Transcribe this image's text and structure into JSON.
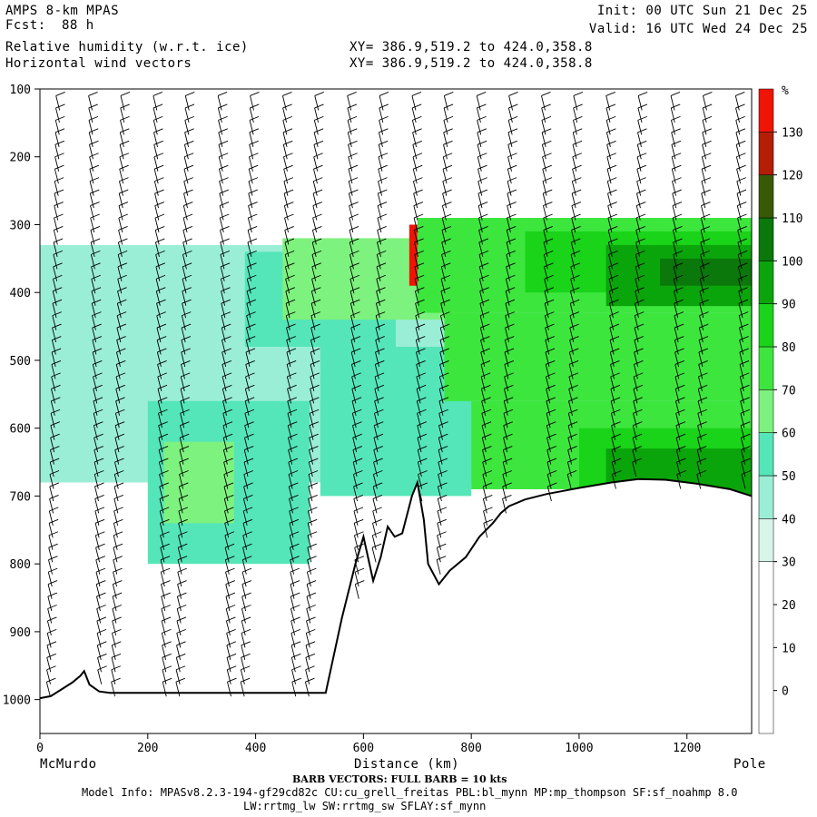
{
  "header": {
    "model": "AMPS 8-km MPAS",
    "fcst_label": "Fcst:",
    "fcst_value": "88 h",
    "field1": "Relative humidity (w.r.t. ice)",
    "field2": "Horizontal wind vectors",
    "init": "Init: 00 UTC Sun 21 Dec 25",
    "valid": "Valid: 16 UTC Wed 24 Dec 25",
    "xy1": "XY= 386.9,519.2 to 424.0,358.8",
    "xy2": "XY= 386.9,519.2 to 424.0,358.8"
  },
  "chart_data": {
    "type": "heatmap",
    "title": "Relative humidity (w.r.t. ice) / Horizontal wind vectors",
    "xlabel": "Distance (km)",
    "ylabel": "",
    "xlim": [
      0,
      1320
    ],
    "ylim": [
      1050,
      100
    ],
    "x_ticks": [
      0,
      200,
      400,
      600,
      800,
      1000,
      1200
    ],
    "y_ticks": [
      100,
      200,
      300,
      400,
      500,
      600,
      700,
      800,
      900,
      1000
    ],
    "x_endpoint_labels": [
      "McMurdo",
      "Pole"
    ],
    "colorbar": {
      "unit": "%",
      "tick_labels": [
        "0",
        "10",
        "20",
        "30",
        "40",
        "50",
        "60",
        "70",
        "80",
        "90",
        "100",
        "110",
        "120",
        "130"
      ],
      "bands": [
        {
          "from": -10,
          "to": 30,
          "color": "#ffffff"
        },
        {
          "from": 30,
          "to": 40,
          "color": "#d8f5ea"
        },
        {
          "from": 40,
          "to": 50,
          "color": "#9beed6"
        },
        {
          "from": 50,
          "to": 60,
          "color": "#54e6b8"
        },
        {
          "from": 60,
          "to": 70,
          "color": "#7ef27e"
        },
        {
          "from": 70,
          "to": 80,
          "color": "#3de63d"
        },
        {
          "from": 80,
          "to": 90,
          "color": "#19d419"
        },
        {
          "from": 90,
          "to": 100,
          "color": "#0aa50a"
        },
        {
          "from": 100,
          "to": 110,
          "color": "#0a780a"
        },
        {
          "from": 110,
          "to": 120,
          "color": "#385a05"
        },
        {
          "from": 120,
          "to": 130,
          "color": "#b41e05"
        },
        {
          "from": 130,
          "to": 140,
          "color": "#f01405"
        }
      ]
    },
    "terrain": [
      [
        0,
        998
      ],
      [
        20,
        995
      ],
      [
        40,
        985
      ],
      [
        60,
        975
      ],
      [
        75,
        965
      ],
      [
        82,
        958
      ],
      [
        92,
        978
      ],
      [
        110,
        988
      ],
      [
        130,
        990
      ],
      [
        200,
        990
      ],
      [
        300,
        990
      ],
      [
        400,
        990
      ],
      [
        470,
        990
      ],
      [
        530,
        990
      ],
      [
        560,
        880
      ],
      [
        585,
        800
      ],
      [
        600,
        760
      ],
      [
        618,
        825
      ],
      [
        632,
        790
      ],
      [
        645,
        745
      ],
      [
        658,
        760
      ],
      [
        672,
        755
      ],
      [
        690,
        700
      ],
      [
        700,
        680
      ],
      [
        712,
        735
      ],
      [
        720,
        800
      ],
      [
        740,
        830
      ],
      [
        760,
        810
      ],
      [
        790,
        790
      ],
      [
        815,
        760
      ],
      [
        840,
        740
      ],
      [
        855,
        725
      ],
      [
        870,
        715
      ],
      [
        900,
        705
      ],
      [
        940,
        697
      ],
      [
        1000,
        688
      ],
      [
        1060,
        680
      ],
      [
        1110,
        675
      ],
      [
        1160,
        676
      ],
      [
        1220,
        682
      ],
      [
        1280,
        690
      ],
      [
        1320,
        700
      ]
    ],
    "humidity_regions": [
      {
        "x": [
          0,
          1320
        ],
        "p": [
          330,
          680
        ],
        "rh": 42
      },
      {
        "x": [
          200,
          500
        ],
        "p": [
          560,
          800
        ],
        "rh": 55
      },
      {
        "x": [
          230,
          360
        ],
        "p": [
          620,
          740
        ],
        "rh": 65
      },
      {
        "x": [
          380,
          660
        ],
        "p": [
          340,
          480
        ],
        "rh": 55
      },
      {
        "x": [
          450,
          800
        ],
        "p": [
          320,
          440
        ],
        "rh": 65
      },
      {
        "x": [
          520,
          800
        ],
        "p": [
          480,
          700
        ],
        "rh": 55
      },
      {
        "x": [
          700,
          1320
        ],
        "p": [
          290,
          430
        ],
        "rh": 75
      },
      {
        "x": [
          750,
          1320
        ],
        "p": [
          430,
          560
        ],
        "rh": 70
      },
      {
        "x": [
          800,
          1320
        ],
        "p": [
          560,
          690
        ],
        "rh": 75
      },
      {
        "x": [
          900,
          1320
        ],
        "p": [
          310,
          400
        ],
        "rh": 85
      },
      {
        "x": [
          1050,
          1320
        ],
        "p": [
          330,
          420
        ],
        "rh": 95
      },
      {
        "x": [
          1150,
          1320
        ],
        "p": [
          350,
          390
        ],
        "rh": 103
      },
      {
        "x": [
          1000,
          1320
        ],
        "p": [
          600,
          700
        ],
        "rh": 85
      },
      {
        "x": [
          1050,
          1320
        ],
        "p": [
          630,
          700
        ],
        "rh": 95
      },
      {
        "x": [
          685,
          700
        ],
        "p": [
          300,
          390
        ],
        "rh": 135
      }
    ],
    "wind_columns_km": [
      30,
      90,
      150,
      210,
      270,
      330,
      390,
      450,
      510,
      570,
      630,
      690,
      750,
      810,
      870,
      930,
      990,
      1050,
      1110,
      1170,
      1230,
      1290
    ]
  },
  "footer": {
    "xlabel_text": "Distance (km)",
    "left_label": "McMurdo",
    "right_label": "Pole",
    "barb_note": "BARB VECTORS: FULL BARB = 10 kts",
    "model_info": "Model Info: MPASv8.2.3-194-gf29cd82c CU:cu_grell_freitas PBL:bl_mynn MP:mp_thompson SF:sf_noahmp 8.0",
    "model_info2": "LW:rrtmg_lw SW:rrtmg_sw SFLAY:sf_mynn"
  }
}
